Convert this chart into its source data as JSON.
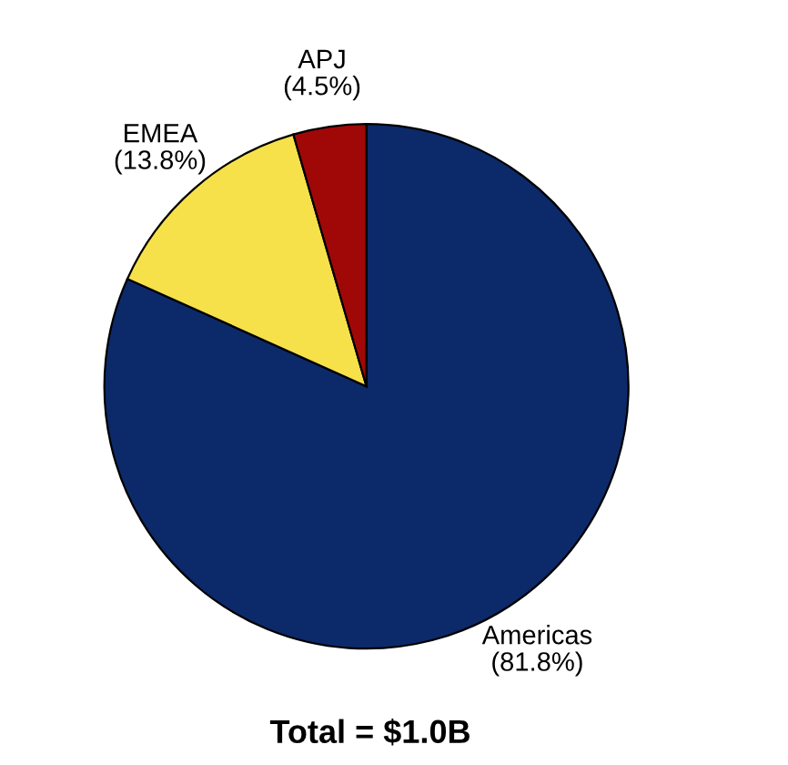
{
  "chart_data": {
    "type": "pie",
    "title": "Total = $1.0B",
    "categories": [
      "Americas",
      "EMEA",
      "APJ"
    ],
    "values": [
      81.8,
      13.8,
      4.5
    ],
    "value_labels": [
      "(81.8%)",
      "(13.8%)",
      "(4.5%)"
    ],
    "colors": [
      "#0c2a6a",
      "#f7e14a",
      "#a00808"
    ]
  }
}
